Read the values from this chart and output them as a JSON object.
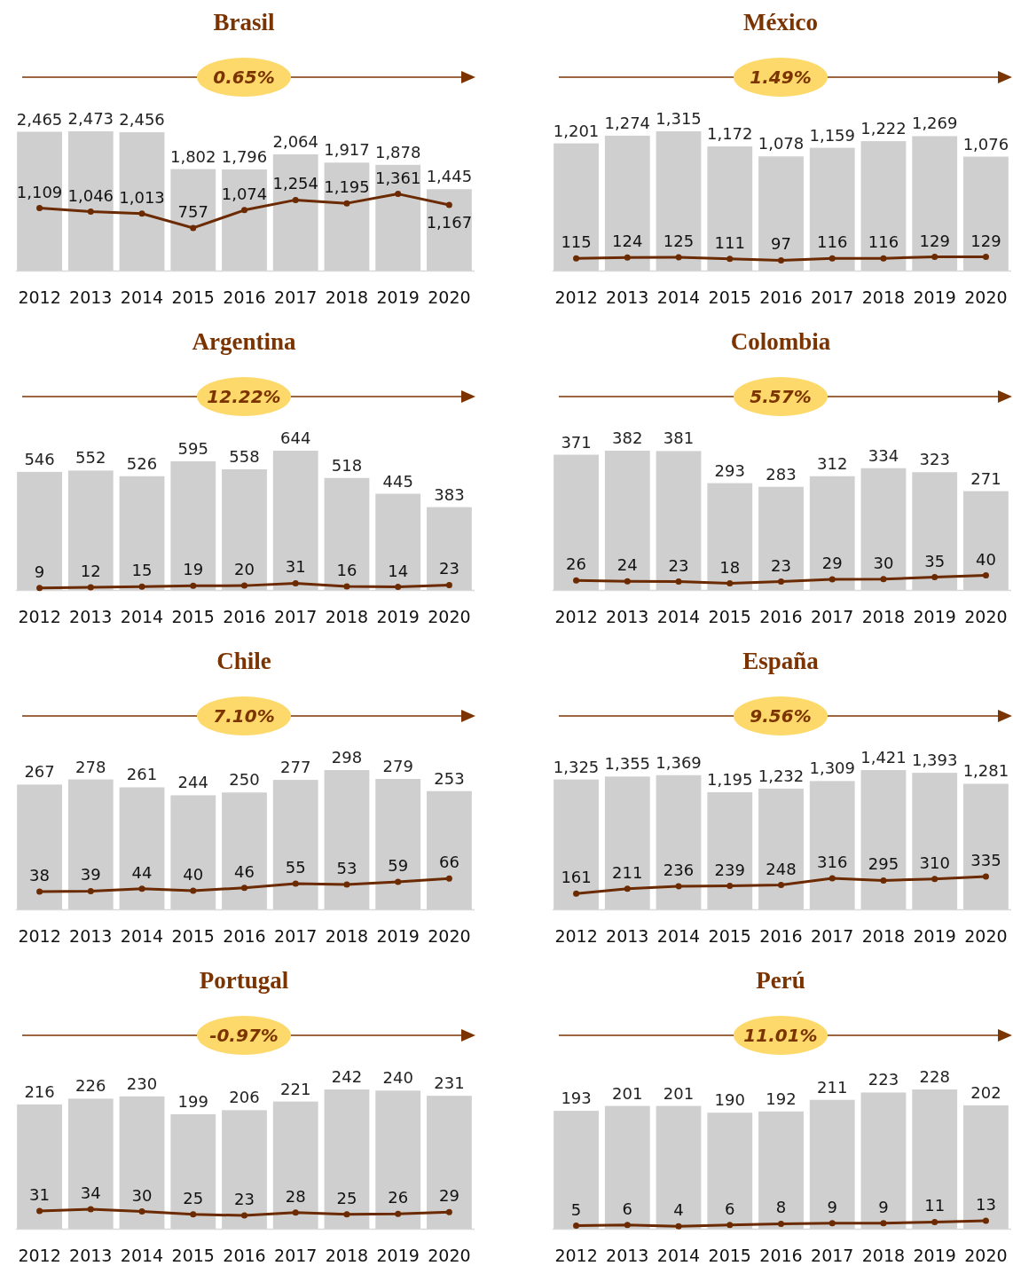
{
  "chart_data": [
    {
      "type": "bar",
      "title": "Brasil",
      "categories": [
        "2012",
        "2013",
        "2014",
        "2015",
        "2016",
        "2017",
        "2018",
        "2019",
        "2020"
      ],
      "data_labels": true,
      "marker": "circle",
      "annotations": [
        "0.65%"
      ],
      "series": [
        {
          "color": "#d0cfd0",
          "values": [
            2465,
            2473,
            2456,
            1802,
            1796,
            2064,
            1917,
            1878,
            1445
          ],
          "value_labels": [
            "2,465",
            "2,473",
            "2,456",
            "1,802",
            "1,796",
            "2,064",
            "1,917",
            "1,878",
            "1,445"
          ]
        },
        {
          "type": "line",
          "color": "#6b2a00",
          "values": [
            1109,
            1046,
            1013,
            757,
            1074,
            1254,
            1195,
            1361,
            1167
          ],
          "value_labels": [
            "1,109",
            "1,046",
            "1,013",
            "757",
            "1,074",
            "1,254",
            "1,195",
            "1,361",
            "1,167"
          ]
        }
      ]
    },
    {
      "type": "bar",
      "title": "México",
      "categories": [
        "2012",
        "2013",
        "2014",
        "2015",
        "2016",
        "2017",
        "2018",
        "2019",
        "2020"
      ],
      "data_labels": true,
      "marker": "circle",
      "annotations": [
        "1.49%"
      ],
      "series": [
        {
          "color": "#d0cfd0",
          "values": [
            1201,
            1274,
            1315,
            1172,
            1078,
            1159,
            1222,
            1269,
            1076
          ],
          "value_labels": [
            "1,201",
            "1,274",
            "1,315",
            "1,172",
            "1,078",
            "1,159",
            "1,222",
            "1,269",
            "1,076"
          ]
        },
        {
          "type": "line",
          "color": "#6b2a00",
          "values": [
            115,
            124,
            125,
            111,
            97,
            116,
            116,
            129,
            129
          ]
        }
      ]
    },
    {
      "type": "bar",
      "title": "Argentina",
      "categories": [
        "2012",
        "2013",
        "2014",
        "2015",
        "2016",
        "2017",
        "2018",
        "2019",
        "2020"
      ],
      "data_labels": true,
      "marker": "circle",
      "annotations": [
        "12.22%"
      ],
      "series": [
        {
          "color": "#d0cfd0",
          "values": [
            546,
            552,
            526,
            595,
            558,
            644,
            518,
            445,
            383
          ]
        },
        {
          "type": "line",
          "color": "#6b2a00",
          "values": [
            9,
            12,
            15,
            19,
            20,
            31,
            16,
            14,
            23
          ]
        }
      ]
    },
    {
      "type": "bar",
      "title": "Colombia",
      "categories": [
        "2012",
        "2013",
        "2014",
        "2015",
        "2016",
        "2017",
        "2018",
        "2019",
        "2020"
      ],
      "data_labels": true,
      "marker": "circle",
      "annotations": [
        "5.57%"
      ],
      "series": [
        {
          "color": "#d0cfd0",
          "values": [
            371,
            382,
            381,
            293,
            283,
            312,
            334,
            323,
            271
          ]
        },
        {
          "type": "line",
          "color": "#6b2a00",
          "values": [
            26,
            24,
            23,
            18,
            23,
            29,
            30,
            35,
            40
          ]
        }
      ]
    },
    {
      "type": "bar",
      "title": "Chile",
      "categories": [
        "2012",
        "2013",
        "2014",
        "2015",
        "2016",
        "2017",
        "2018",
        "2019",
        "2020"
      ],
      "data_labels": true,
      "marker": "circle",
      "annotations": [
        "7.10%"
      ],
      "series": [
        {
          "color": "#d0cfd0",
          "values": [
            267,
            278,
            261,
            244,
            250,
            277,
            298,
            279,
            253
          ]
        },
        {
          "type": "line",
          "color": "#6b2a00",
          "values": [
            38,
            39,
            44,
            40,
            46,
            55,
            53,
            59,
            66
          ]
        }
      ]
    },
    {
      "type": "bar",
      "title": "España",
      "categories": [
        "2012",
        "2013",
        "2014",
        "2015",
        "2016",
        "2017",
        "2018",
        "2019",
        "2020"
      ],
      "data_labels": true,
      "marker": "circle",
      "annotations": [
        "9.56%"
      ],
      "series": [
        {
          "color": "#d0cfd0",
          "values": [
            1325,
            1355,
            1369,
            1195,
            1232,
            1309,
            1421,
            1393,
            1281
          ],
          "value_labels": [
            "1,325",
            "1,355",
            "1,369",
            "1,195",
            "1,232",
            "1,309",
            "1,421",
            "1,393",
            "1,281"
          ]
        },
        {
          "type": "line",
          "color": "#6b2a00",
          "values": [
            161,
            211,
            236,
            239,
            248,
            316,
            295,
            310,
            335
          ]
        }
      ]
    },
    {
      "type": "bar",
      "title": "Portugal",
      "categories": [
        "2012",
        "2013",
        "2014",
        "2015",
        "2016",
        "2017",
        "2018",
        "2019",
        "2020"
      ],
      "data_labels": true,
      "marker": "circle",
      "annotations": [
        "-0.97%"
      ],
      "series": [
        {
          "color": "#d0cfd0",
          "values": [
            216,
            226,
            230,
            199,
            206,
            221,
            242,
            240,
            231
          ]
        },
        {
          "type": "line",
          "color": "#6b2a00",
          "values": [
            31,
            34,
            30,
            25,
            23,
            28,
            25,
            26,
            29
          ]
        }
      ]
    },
    {
      "type": "bar",
      "title": "Perú",
      "categories": [
        "2012",
        "2013",
        "2014",
        "2015",
        "2016",
        "2017",
        "2018",
        "2019",
        "2020"
      ],
      "data_labels": true,
      "marker": "circle",
      "annotations": [
        "11.01%"
      ],
      "series": [
        {
          "color": "#d0cfd0",
          "values": [
            193,
            201,
            201,
            190,
            192,
            211,
            223,
            228,
            202
          ]
        },
        {
          "type": "line",
          "color": "#6b2a00",
          "values": [
            5,
            6,
            4,
            6,
            8,
            9,
            9,
            11,
            13
          ]
        }
      ]
    }
  ]
}
